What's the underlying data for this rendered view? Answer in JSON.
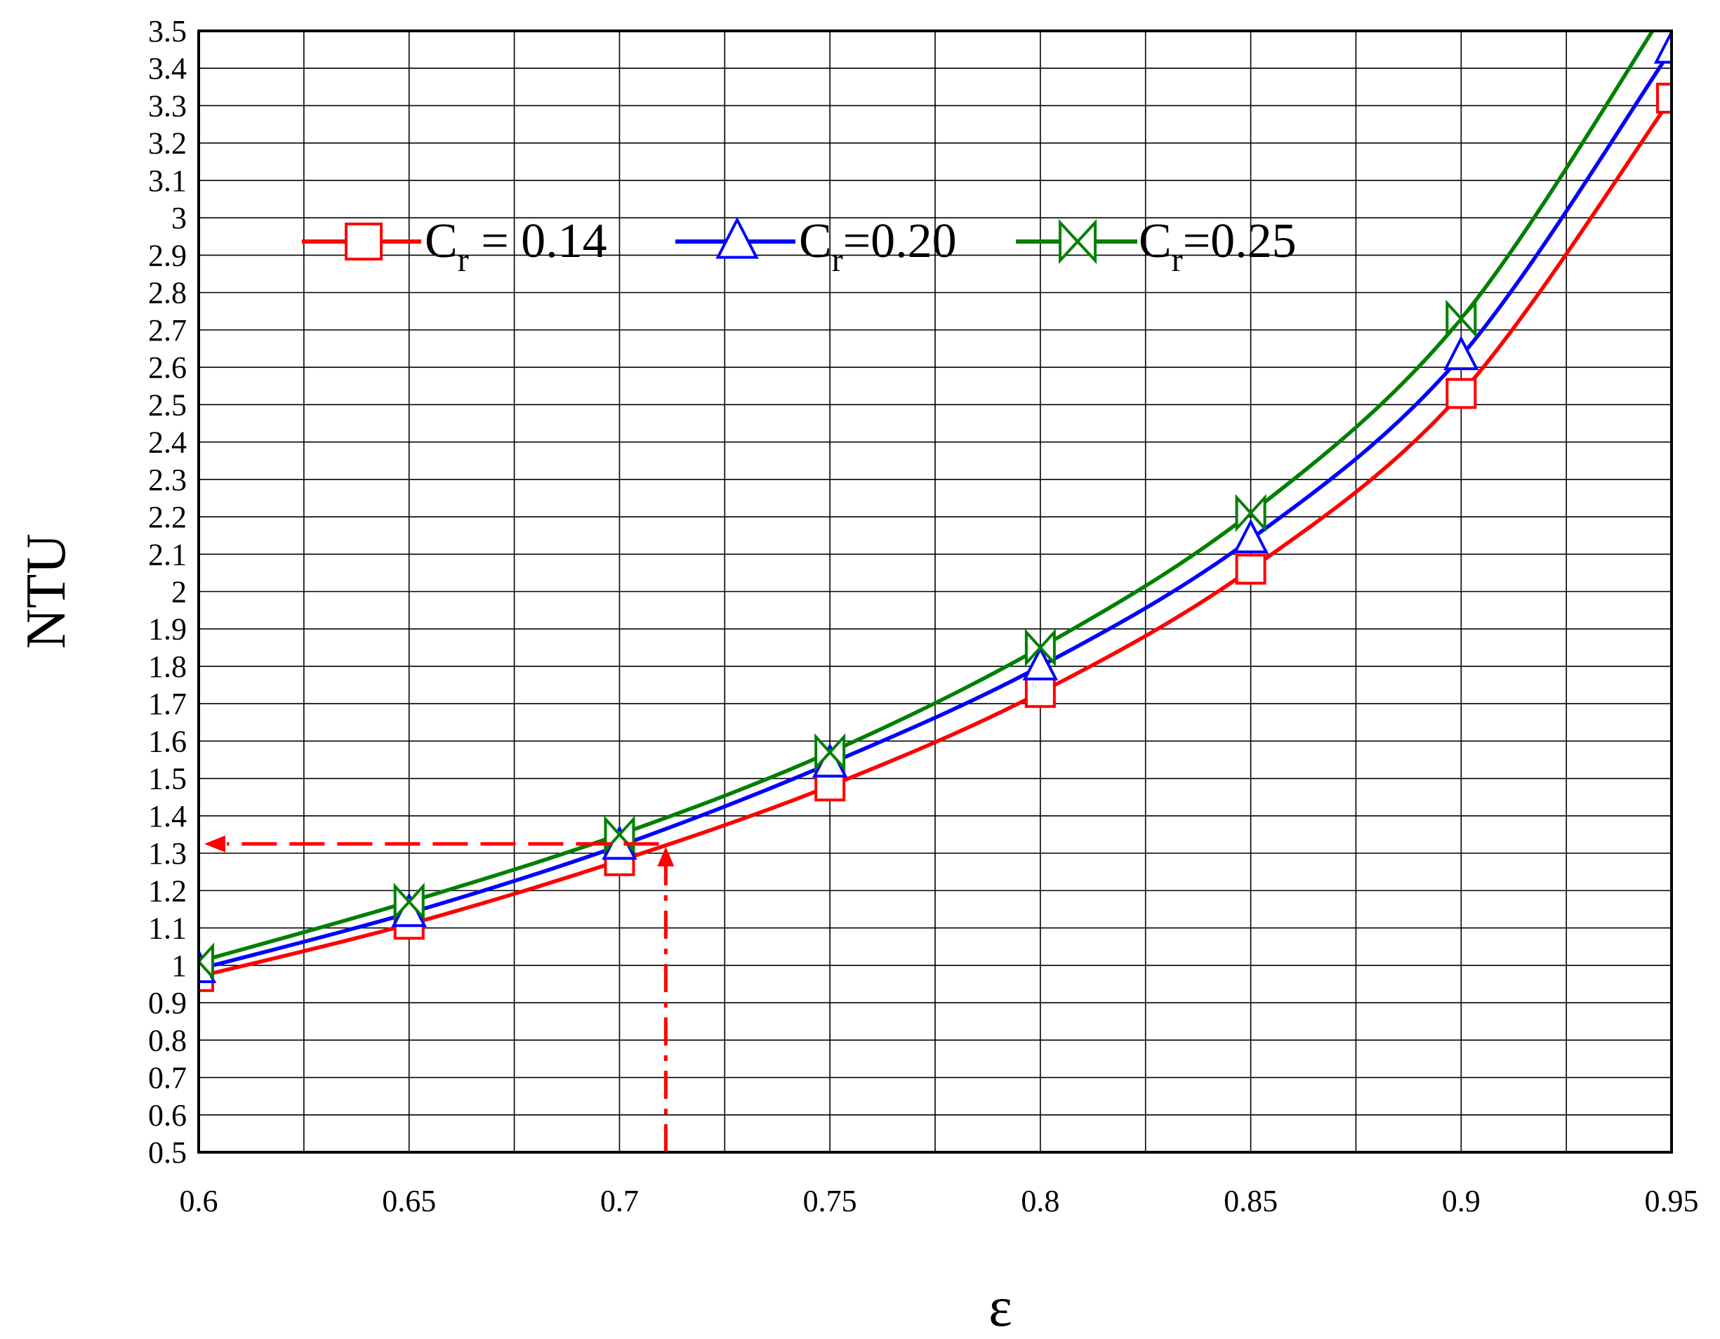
{
  "chart_data": {
    "type": "line",
    "title": "",
    "xlabel": "ε",
    "ylabel": "NTU",
    "xlim": [
      0.6,
      0.95
    ],
    "ylim": [
      0.5,
      3.5
    ],
    "grid": true,
    "legend_position": "top-center",
    "x_ticks": [
      "0.6",
      "0.65",
      "0.7",
      "0.75",
      "0.8",
      "0.85",
      "0.9",
      "0.95"
    ],
    "y_ticks": [
      "0.5",
      "0.6",
      "0.7",
      "0.8",
      "0.9",
      "1",
      "1.1",
      "1.2",
      "1.3",
      "1.4",
      "1.5",
      "1.6",
      "1.7",
      "1.8",
      "1.9",
      "2",
      "2.1",
      "2.2",
      "2.3",
      "2.4",
      "2.5",
      "2.6",
      "2.7",
      "2.8",
      "2.9",
      "3",
      "3.1",
      "3.2",
      "3.3",
      "3.4",
      "3.5"
    ],
    "series": [
      {
        "name_base": "C",
        "name_sub": "r",
        "name_rest": " = 0.14",
        "color": "#ff0000",
        "marker": "square",
        "x": [
          0.6,
          0.65,
          0.7,
          0.75,
          0.8,
          0.85,
          0.9,
          0.95
        ],
        "y": [
          0.97,
          1.11,
          1.28,
          1.48,
          1.73,
          2.06,
          2.53,
          3.32
        ]
      },
      {
        "name_base": "C",
        "name_sub": "r",
        "name_rest": "=0.20",
        "color": "#0000ff",
        "marker": "triangle",
        "x": [
          0.6,
          0.65,
          0.7,
          0.75,
          0.8,
          0.85,
          0.9,
          0.95
        ],
        "y": [
          0.99,
          1.14,
          1.32,
          1.54,
          1.8,
          2.14,
          2.63,
          3.45
        ]
      },
      {
        "name_base": "C",
        "name_sub": "r",
        "name_rest": "=0.25",
        "color": "#008000",
        "marker": "bowtie",
        "x": [
          0.6,
          0.65,
          0.7,
          0.75,
          0.8,
          0.85,
          0.9,
          0.95
        ],
        "y": [
          1.01,
          1.17,
          1.35,
          1.57,
          1.85,
          2.21,
          2.73,
          3.58
        ]
      }
    ],
    "annotation": {
      "color": "#ff0000",
      "x": 0.711,
      "y": 1.325
    }
  }
}
